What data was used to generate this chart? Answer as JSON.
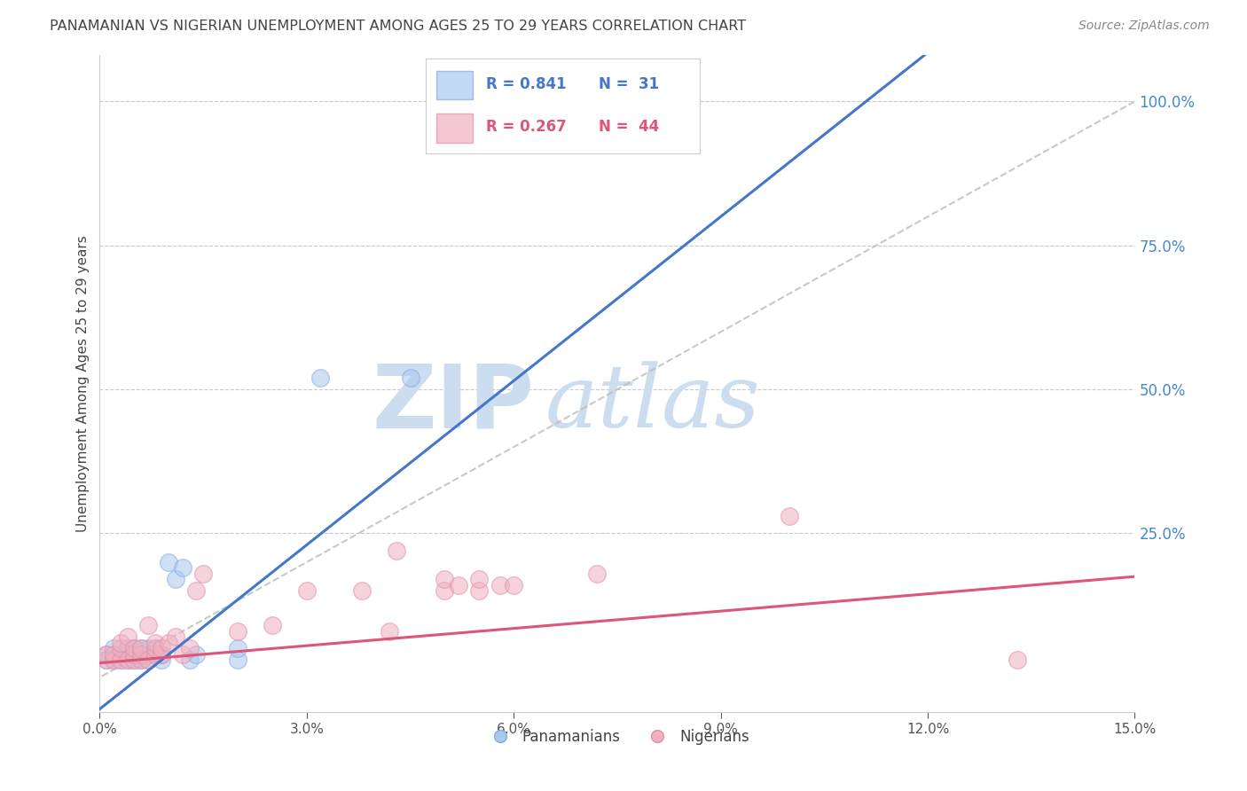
{
  "title": "PANAMANIAN VS NIGERIAN UNEMPLOYMENT AMONG AGES 25 TO 29 YEARS CORRELATION CHART",
  "source": "Source: ZipAtlas.com",
  "ylabel_left": "Unemployment Among Ages 25 to 29 years",
  "legend_blue_label": "Panamanians",
  "legend_pink_label": "Nigerians",
  "legend_blue_r": "R = 0.841",
  "legend_blue_n": "N =  31",
  "legend_pink_r": "R = 0.267",
  "legend_pink_n": "N =  44",
  "xlim": [
    0.0,
    0.15
  ],
  "ylim": [
    -0.06,
    1.08
  ],
  "right_yticks": [
    0.0,
    0.25,
    0.5,
    0.75,
    1.0
  ],
  "right_yticklabels": [
    "",
    "25.0%",
    "50.0%",
    "75.0%",
    "100.0%"
  ],
  "bottom_xticks": [
    0.0,
    0.03,
    0.06,
    0.09,
    0.12,
    0.15
  ],
  "bottom_xticklabels": [
    "0.0%",
    "3.0%",
    "6.0%",
    "9.0%",
    "12.0%",
    "15.0%"
  ],
  "background_color": "#ffffff",
  "grid_color": "#c8c8d0",
  "title_color": "#444444",
  "source_color": "#888888",
  "blue_fill_color": "#a8c8ee",
  "blue_edge_color": "#88aadd",
  "pink_fill_color": "#f0b0c0",
  "pink_edge_color": "#e090a8",
  "blue_line_color": "#4477cc",
  "pink_line_color": "#dd5577",
  "diag_line_color": "#bbbbbb",
  "right_axis_color": "#4488cc",
  "watermark_color": "#ccddf0",
  "pan_x": [
    0.001,
    0.001,
    0.002,
    0.002,
    0.003,
    0.003,
    0.004,
    0.004,
    0.005,
    0.005,
    0.005,
    0.006,
    0.006,
    0.006,
    0.007,
    0.007,
    0.007,
    0.008,
    0.008,
    0.009,
    0.009,
    0.01,
    0.011,
    0.012,
    0.013,
    0.014,
    0.02,
    0.02,
    0.032,
    0.045,
    0.066
  ],
  "pan_y": [
    0.03,
    0.04,
    0.03,
    0.05,
    0.03,
    0.04,
    0.03,
    0.05,
    0.03,
    0.04,
    0.05,
    0.03,
    0.04,
    0.05,
    0.03,
    0.04,
    0.05,
    0.04,
    0.05,
    0.03,
    0.04,
    0.2,
    0.17,
    0.19,
    0.03,
    0.04,
    0.03,
    0.05,
    0.52,
    0.52,
    1.0
  ],
  "nig_x": [
    0.001,
    0.001,
    0.002,
    0.002,
    0.003,
    0.003,
    0.003,
    0.004,
    0.004,
    0.005,
    0.005,
    0.005,
    0.006,
    0.006,
    0.006,
    0.007,
    0.007,
    0.008,
    0.008,
    0.008,
    0.009,
    0.009,
    0.01,
    0.011,
    0.012,
    0.013,
    0.014,
    0.015,
    0.02,
    0.025,
    0.03,
    0.038,
    0.042,
    0.043,
    0.05,
    0.05,
    0.052,
    0.055,
    0.055,
    0.058,
    0.06,
    0.072,
    0.1,
    0.133
  ],
  "nig_y": [
    0.03,
    0.04,
    0.03,
    0.04,
    0.03,
    0.05,
    0.06,
    0.03,
    0.07,
    0.03,
    0.04,
    0.05,
    0.03,
    0.04,
    0.05,
    0.03,
    0.09,
    0.04,
    0.05,
    0.06,
    0.04,
    0.05,
    0.06,
    0.07,
    0.04,
    0.05,
    0.15,
    0.18,
    0.08,
    0.09,
    0.15,
    0.15,
    0.08,
    0.22,
    0.15,
    0.17,
    0.16,
    0.15,
    0.17,
    0.16,
    0.16,
    0.18,
    0.28,
    0.03
  ],
  "blue_intercept": -0.055,
  "blue_slope": 9.5,
  "pink_intercept": 0.025,
  "pink_slope": 1.0
}
